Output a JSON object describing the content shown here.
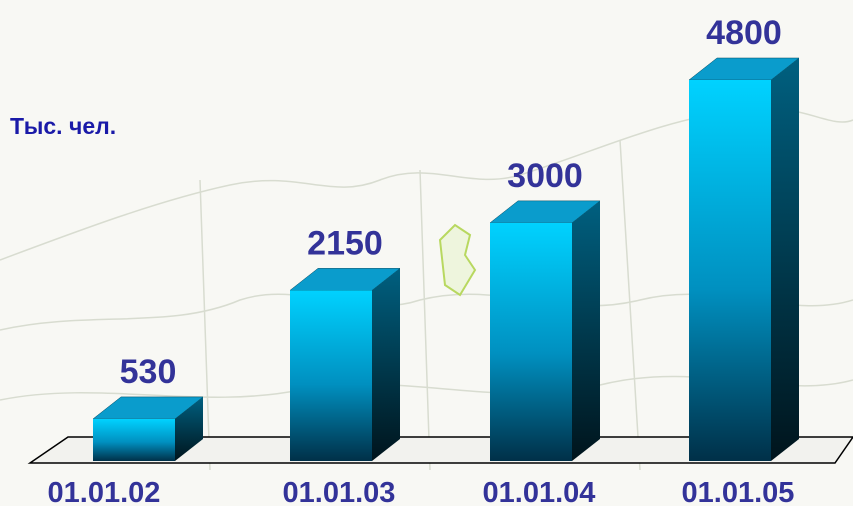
{
  "chart_data": {
    "type": "bar3d",
    "y_label": "Тыс. чел.",
    "categories": [
      "01.01.02",
      "01.01.03",
      "01.01.04",
      "01.01.05"
    ],
    "values": [
      530,
      2150,
      3000,
      4800
    ],
    "color": "#00ccff",
    "label_color": "#333399"
  }
}
